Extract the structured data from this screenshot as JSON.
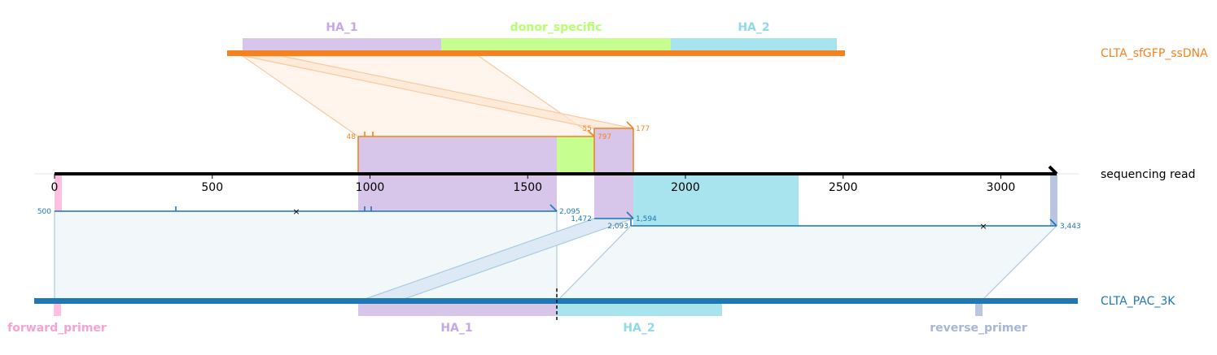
{
  "colors": {
    "donor": "#f58220",
    "reference": "#1f77b4",
    "read": "#000000",
    "HA_1": "#d8c6ea",
    "HA_2": "#a8e4ee",
    "donor_specific": "#c6ff8f",
    "forward_primer": "#ffbfe1",
    "reverse_primer": "#b8c6e0",
    "ha1_text": "#c6a8e8",
    "ha2_text": "#8fdaea",
    "donor_specific_text": "#b6ff6e",
    "forward_primer_text": "#f7a2d4",
    "reverse_primer_text": "#a8b6d6"
  },
  "tracks": {
    "donor": "CLTA_sfGFP_ssDNA",
    "read": "sequencing read",
    "reference": "CLTA_PAC_3K"
  },
  "donor_features": [
    {
      "name": "HA_1",
      "color_key": "HA_1",
      "text_key": "ha1_text"
    },
    {
      "name": "donor_specific",
      "color_key": "donor_specific",
      "text_key": "donor_specific_text"
    },
    {
      "name": "HA_2",
      "color_key": "HA_2",
      "text_key": "ha2_text"
    }
  ],
  "reference_features": [
    {
      "name": "forward_primer",
      "color_key": "forward_primer",
      "text_key": "forward_primer_text"
    },
    {
      "name": "HA_1",
      "color_key": "HA_1",
      "text_key": "ha1_text"
    },
    {
      "name": "HA_2",
      "color_key": "HA_2",
      "text_key": "ha2_text"
    },
    {
      "name": "reverse_primer",
      "color_key": "reverse_primer",
      "text_key": "reverse_primer_text"
    }
  ],
  "axis": {
    "ticks": [
      0,
      500,
      1000,
      1500,
      2000,
      2500,
      3000
    ],
    "tick_labels": [
      "0",
      "500",
      "1000",
      "1500",
      "2000",
      "2500",
      "3000"
    ]
  },
  "alignments": {
    "donor_1": {
      "start": "48",
      "end": "797"
    },
    "donor_2": {
      "start": "55",
      "end": "177"
    },
    "ref_1": {
      "start": "500",
      "end": "2,095"
    },
    "ref_2": {
      "start": "1,472",
      "end": "1,594"
    },
    "ref_3": {
      "start": "2,093",
      "end": "3,443"
    }
  },
  "markers": {
    "mismatch_glyph": "×"
  }
}
